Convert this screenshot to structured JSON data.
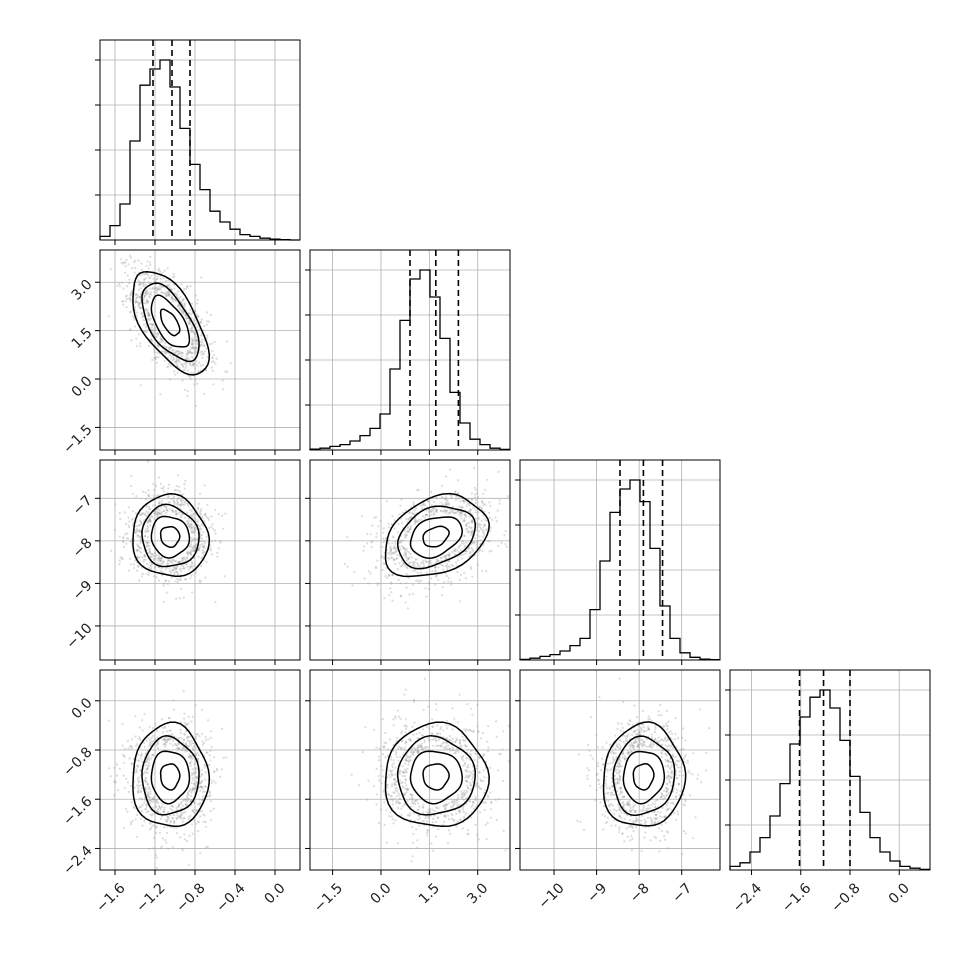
{
  "chart_data": {
    "type": "corner",
    "parameters": [
      {
        "index": 0,
        "range": [
          -1.75,
          0.25
        ],
        "ticks": [
          -1.6,
          -1.2,
          -0.8,
          -0.4,
          0.0
        ],
        "tick_labels": [
          "−1.6",
          "−1.2",
          "−0.8",
          "−0.4",
          "0.0"
        ],
        "quantiles": [
          -1.22,
          -1.03,
          -0.85
        ]
      },
      {
        "index": 1,
        "range": [
          -2.2,
          4.0
        ],
        "ticks": [
          -1.5,
          0.0,
          1.5,
          3.0
        ],
        "tick_labels": [
          "−1.5",
          "0.0",
          "1.5",
          "3.0"
        ],
        "quantiles": [
          0.9,
          1.7,
          2.4
        ]
      },
      {
        "index": 2,
        "range": [
          -10.8,
          -6.1
        ],
        "ticks": [
          -10,
          -9,
          -8,
          -7
        ],
        "tick_labels": [
          "−10",
          "−9",
          "−8",
          "−7"
        ],
        "quantiles": [
          -8.45,
          -7.9,
          -7.45
        ]
      },
      {
        "index": 3,
        "range": [
          -2.75,
          0.5
        ],
        "ticks": [
          -2.4,
          -1.6,
          -0.8,
          0.0
        ],
        "tick_labels": [
          "−2.4",
          "−1.6",
          "−0.8",
          "0.0"
        ],
        "quantiles": [
          -1.62,
          -1.23,
          -0.8
        ]
      }
    ],
    "histograms": [
      {
        "param": 0,
        "bin_start": -1.75,
        "bin_width": 0.1,
        "counts": [
          2,
          8,
          20,
          55,
          86,
          95,
          100,
          85,
          62,
          42,
          28,
          16,
          10,
          6,
          3,
          2,
          1,
          0.5,
          0.2,
          0
        ]
      },
      {
        "param": 1,
        "bin_start": -2.2,
        "bin_width": 0.31,
        "counts": [
          0.5,
          1,
          2,
          3,
          5,
          8,
          12,
          20,
          45,
          72,
          95,
          100,
          85,
          62,
          32,
          15,
          6,
          3,
          1,
          0.3
        ]
      },
      {
        "param": 2,
        "bin_start": -10.8,
        "bin_width": 0.235,
        "counts": [
          0.3,
          1,
          2,
          3,
          5,
          8,
          12,
          28,
          55,
          82,
          95,
          100,
          88,
          62,
          30,
          12,
          4,
          1.5,
          0.5,
          0.2
        ]
      },
      {
        "param": 3,
        "bin_start": -2.75,
        "bin_width": 0.1625,
        "counts": [
          2,
          4,
          10,
          18,
          30,
          48,
          70,
          85,
          96,
          100,
          90,
          72,
          52,
          32,
          18,
          10,
          5,
          2,
          1,
          0.3
        ]
      }
    ],
    "pairs": [
      {
        "x": 0,
        "y": 1,
        "center": [
          -1.05,
          1.75
        ],
        "sigma": [
          0.19,
          0.8
        ],
        "rho": -0.6,
        "y_range": [
          -2.2,
          4.0
        ],
        "y_ticks": [
          -1.5,
          0.0,
          1.5,
          3.0
        ],
        "y_tick_labels": [
          "−1.5",
          "0.0",
          "1.5",
          "3.0"
        ]
      },
      {
        "x": 0,
        "y": 2,
        "center": [
          -1.05,
          -7.9
        ],
        "sigma": [
          0.19,
          0.48
        ],
        "rho": -0.05,
        "y_range": [
          -10.8,
          -6.1
        ],
        "y_ticks": [
          -10,
          -9,
          -8,
          -7
        ],
        "y_tick_labels": [
          "−10",
          "−9",
          "−8",
          "−7"
        ]
      },
      {
        "x": 1,
        "y": 2,
        "center": [
          1.7,
          -7.9
        ],
        "sigma": [
          0.8,
          0.48
        ],
        "rho": 0.3,
        "y_range": [
          -10.8,
          -6.1
        ]
      },
      {
        "x": 0,
        "y": 3,
        "center": [
          -1.05,
          -1.23
        ],
        "sigma": [
          0.19,
          0.42
        ],
        "rho": 0.0,
        "y_range": [
          -2.75,
          0.5
        ],
        "y_ticks": [
          -2.4,
          -1.6,
          -0.8,
          0.0
        ],
        "y_tick_labels": [
          "−2.4",
          "−1.6",
          "−0.8",
          "0.0"
        ]
      },
      {
        "x": 1,
        "y": 3,
        "center": [
          1.7,
          -1.23
        ],
        "sigma": [
          0.8,
          0.42
        ],
        "rho": 0.0,
        "y_range": [
          -2.75,
          0.5
        ]
      },
      {
        "x": 2,
        "y": 3,
        "center": [
          -7.9,
          -1.23
        ],
        "sigma": [
          0.48,
          0.42
        ],
        "rho": 0.05,
        "y_range": [
          -2.75,
          0.5
        ]
      }
    ],
    "contour_levels_sigma": [
      0.5,
      1.0,
      1.5,
      2.0
    ],
    "grid": true,
    "colors": {
      "hist": "#000000",
      "contour": "#000000",
      "points": "#9a9a9a",
      "density": "#000000"
    }
  }
}
